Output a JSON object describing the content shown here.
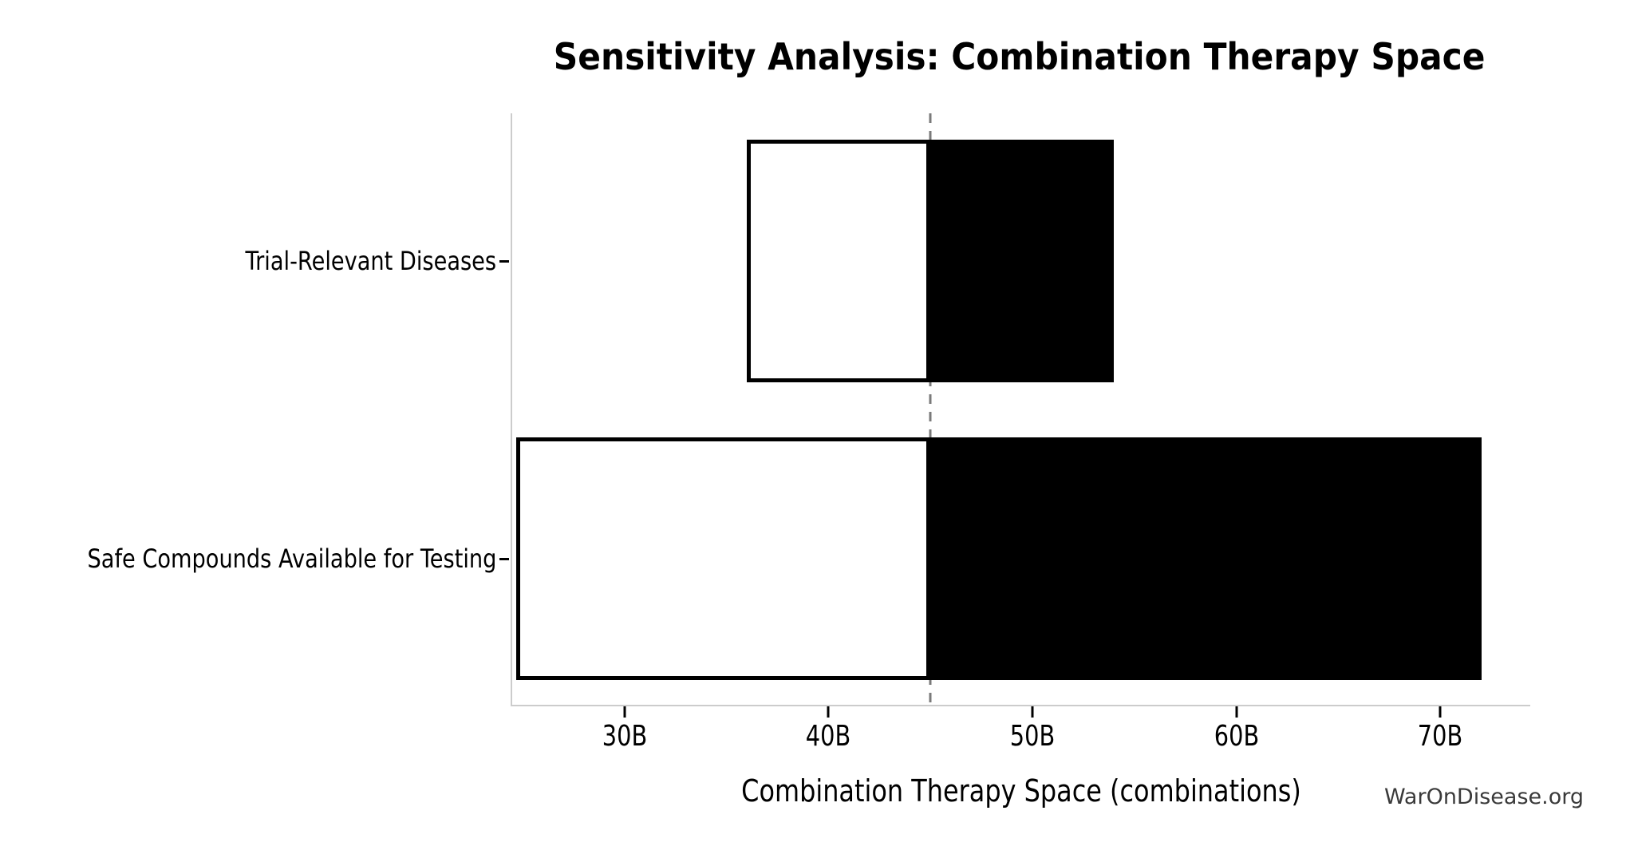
{
  "watermark": "WarOnDisease.org",
  "chart_data": {
    "type": "bar",
    "variant": "tornado-sensitivity",
    "orientation": "horizontal",
    "title": "Sensitivity Analysis: Combination Therapy Space",
    "xlabel": "Combination Therapy Space (combinations)",
    "ylabel": "",
    "unit_suffix": "B",
    "baseline_value": 45,
    "xlim": [
      24.5,
      74.4
    ],
    "x_ticks": [
      {
        "value": 30,
        "label": "30B"
      },
      {
        "value": 40,
        "label": "40B"
      },
      {
        "value": 50,
        "label": "50B"
      },
      {
        "value": 60,
        "label": "60B"
      },
      {
        "value": 70,
        "label": "70B"
      }
    ],
    "categories": [
      "Trial-Relevant Diseases",
      "Safe Compounds Available for Testing"
    ],
    "bars": [
      {
        "category": "Trial-Relevant Diseases",
        "low": 36,
        "high": 54
      },
      {
        "category": "Safe Compounds Available for Testing",
        "low": 24.7,
        "high": 72
      }
    ],
    "grid": false,
    "legend": "none",
    "colors": {
      "bar_low_fill": "#ffffff",
      "bar_high_fill": "#000000",
      "bar_edge": "#000000",
      "baseline_line": "#7a7a7a",
      "spine": "#cccccc",
      "text": "#000000",
      "watermark_text": "#3a3a3a"
    }
  }
}
